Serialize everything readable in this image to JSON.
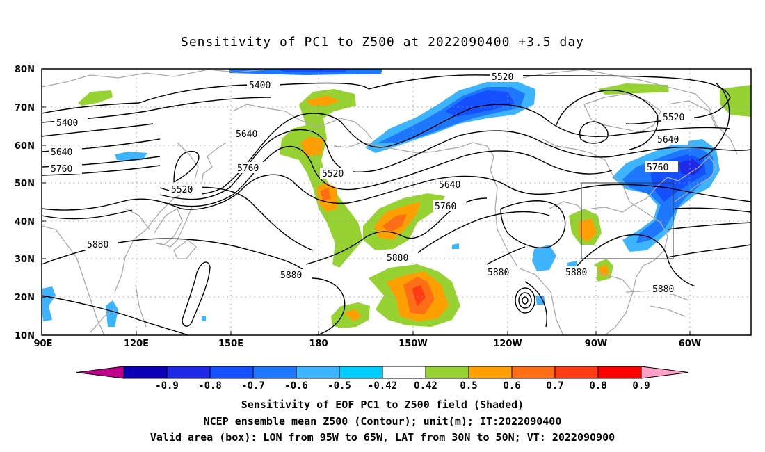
{
  "title": "Sensitivity of PC1 to Z500 at 2022090400 +3.5 day",
  "captions": [
    "Sensitivity of EOF PC1 to Z500 field (Shaded)",
    "NCEP ensemble mean Z500 (Contour); unit(m); IT:2022090400",
    "Valid area (box): LON from 95W to 65W, LAT from 30N to 50N; VT: 2022090900"
  ],
  "axes": {
    "lat_labels": [
      "80N",
      "70N",
      "60N",
      "50N",
      "40N",
      "30N",
      "20N",
      "10N"
    ],
    "lon_labels": [
      "90E",
      "120E",
      "150E",
      "180",
      "150W",
      "120W",
      "90W",
      "60W"
    ]
  },
  "colorbar": {
    "labels": [
      "-0.9",
      "-0.8",
      "-0.7",
      "-0.6",
      "-0.5",
      "-0.42",
      "0.42",
      "0.5",
      "0.6",
      "0.7",
      "0.8",
      "0.9"
    ],
    "colors": [
      "#c0008c",
      "#0a00b4",
      "#1e28e6",
      "#1450ff",
      "#1e78ff",
      "#3cb4ff",
      "#00cdff",
      "#ffffff",
      "#96d232",
      "#ffa000",
      "#ff6e14",
      "#ff3c14",
      "#ff0000",
      "#ffa0c8"
    ]
  },
  "contour_labels": [
    "5400",
    "5400",
    "5520",
    "5520",
    "5520",
    "5520",
    "5640",
    "5640",
    "5640",
    "5640",
    "5760",
    "5760",
    "5760",
    "5760",
    "5880",
    "5880",
    "5880",
    "5880",
    "5880",
    "5880"
  ]
}
